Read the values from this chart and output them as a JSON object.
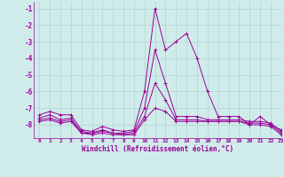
{
  "x": [
    0,
    1,
    2,
    3,
    4,
    5,
    6,
    7,
    8,
    9,
    10,
    11,
    12,
    13,
    14,
    15,
    16,
    17,
    18,
    19,
    20,
    21,
    22,
    23
  ],
  "line1": [
    -7.4,
    -7.2,
    -7.4,
    -7.4,
    -8.3,
    -8.4,
    -8.1,
    -8.3,
    -8.4,
    -8.3,
    -6.0,
    -1.0,
    -3.5,
    -3.0,
    -2.5,
    -4.0,
    -6.0,
    -7.5,
    -7.5,
    -7.5,
    -8.0,
    -7.5,
    -8.0,
    -8.3
  ],
  "line2": [
    -7.6,
    -7.4,
    -7.7,
    -7.6,
    -8.4,
    -8.5,
    -8.3,
    -8.5,
    -8.5,
    -8.4,
    -7.0,
    -3.5,
    -5.5,
    -7.5,
    -7.5,
    -7.5,
    -7.7,
    -7.7,
    -7.7,
    -7.7,
    -7.8,
    -7.8,
    -7.9,
    -8.4
  ],
  "line3": [
    -7.7,
    -7.6,
    -7.8,
    -7.7,
    -8.5,
    -8.5,
    -8.4,
    -8.5,
    -8.6,
    -8.5,
    -7.5,
    -5.5,
    -6.5,
    -7.7,
    -7.7,
    -7.7,
    -7.8,
    -7.8,
    -7.8,
    -7.8,
    -7.9,
    -7.9,
    -8.0,
    -8.5
  ],
  "line4": [
    -7.8,
    -7.7,
    -7.9,
    -7.8,
    -8.5,
    -8.6,
    -8.5,
    -8.6,
    -8.6,
    -8.6,
    -7.7,
    -7.0,
    -7.2,
    -7.8,
    -7.8,
    -7.8,
    -7.8,
    -7.8,
    -7.8,
    -7.8,
    -8.0,
    -8.0,
    -8.1,
    -8.6
  ],
  "color": "#990099",
  "bg_color": "#d0ecea",
  "grid_color": "#b0d4d0",
  "xlabel": "Windchill (Refroidissement éolien,°C)",
  "ylim": [
    -8.8,
    -0.6
  ],
  "xlim": [
    -0.5,
    23
  ],
  "yticks": [
    -1,
    -2,
    -3,
    -4,
    -5,
    -6,
    -7,
    -8
  ],
  "xticks": [
    0,
    1,
    2,
    3,
    4,
    5,
    6,
    7,
    8,
    9,
    10,
    11,
    12,
    13,
    14,
    15,
    16,
    17,
    18,
    19,
    20,
    21,
    22,
    23
  ]
}
